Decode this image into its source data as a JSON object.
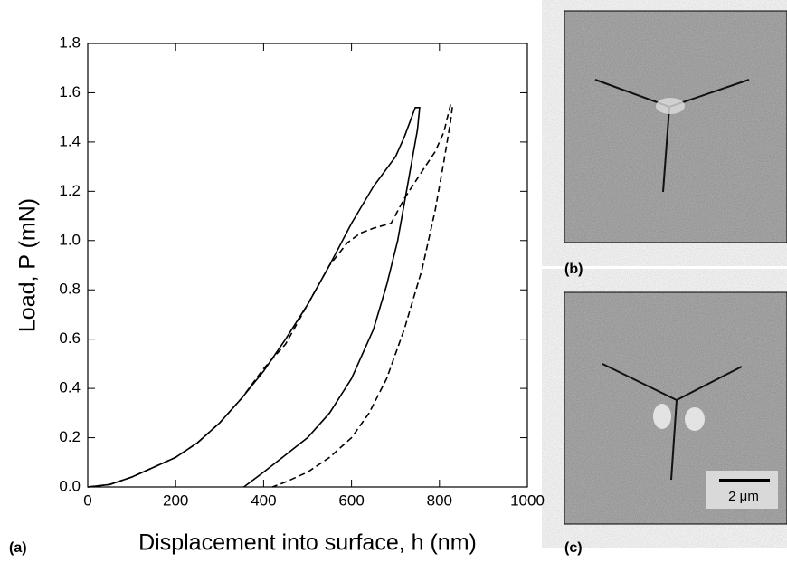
{
  "chart_data": {
    "type": "line",
    "xlabel": "Displacement into surface, h (nm)",
    "ylabel": "Load, P (mN)",
    "panel_labels": [
      "(a)",
      "(b)",
      "(c)"
    ],
    "scale_bar": "2 μm",
    "xlim": [
      0,
      1000
    ],
    "xticks": [
      0,
      200,
      400,
      600,
      800,
      1000
    ],
    "ylim": [
      0,
      1.8
    ],
    "yticks": [
      {
        "value": 0,
        "label": "0.0"
      },
      {
        "value": 0.2,
        "label": "0.2"
      },
      {
        "value": 0.4,
        "label": "0.4"
      },
      {
        "value": 0.6,
        "label": "0.6"
      },
      {
        "value": 0.8,
        "label": "0.8"
      },
      {
        "value": 1.0,
        "label": "1.0"
      },
      {
        "value": 1.2,
        "label": "1.2"
      },
      {
        "value": 1.4,
        "label": "1.4"
      },
      {
        "value": 1.6,
        "label": "1.6"
      },
      {
        "value": 1.8,
        "label": "1.8"
      }
    ],
    "series": [
      {
        "color": "#000000",
        "line_style": "solid",
        "x": [
          0,
          50,
          100,
          150,
          200,
          250,
          300,
          350,
          400,
          450,
          500,
          550,
          600,
          650,
          700,
          720,
          745,
          755,
          750,
          735,
          720,
          705,
          680,
          650,
          600,
          550,
          500,
          450,
          400,
          355
        ],
        "values": [
          0,
          0.01,
          0.04,
          0.08,
          0.12,
          0.18,
          0.26,
          0.36,
          0.47,
          0.6,
          0.74,
          0.9,
          1.07,
          1.22,
          1.34,
          1.42,
          1.54,
          1.54,
          1.45,
          1.3,
          1.15,
          1.0,
          0.82,
          0.64,
          0.44,
          0.3,
          0.2,
          0.13,
          0.06,
          0
        ]
      },
      {
        "color": "#000000",
        "line_style": "dashed",
        "x": [
          0,
          50,
          100,
          150,
          200,
          250,
          300,
          350,
          400,
          450,
          500,
          550,
          590,
          620,
          650,
          690,
          720,
          760,
          790,
          810,
          825,
          830,
          825,
          810,
          790,
          760,
          720,
          680,
          640,
          600,
          550,
          500,
          450,
          420
        ],
        "values": [
          0,
          0.01,
          0.04,
          0.08,
          0.12,
          0.18,
          0.26,
          0.36,
          0.48,
          0.58,
          0.74,
          0.9,
          0.99,
          1.03,
          1.05,
          1.07,
          1.17,
          1.28,
          1.36,
          1.44,
          1.55,
          1.55,
          1.48,
          1.32,
          1.12,
          0.88,
          0.64,
          0.44,
          0.3,
          0.2,
          0.12,
          0.06,
          0.02,
          0
        ]
      }
    ]
  }
}
